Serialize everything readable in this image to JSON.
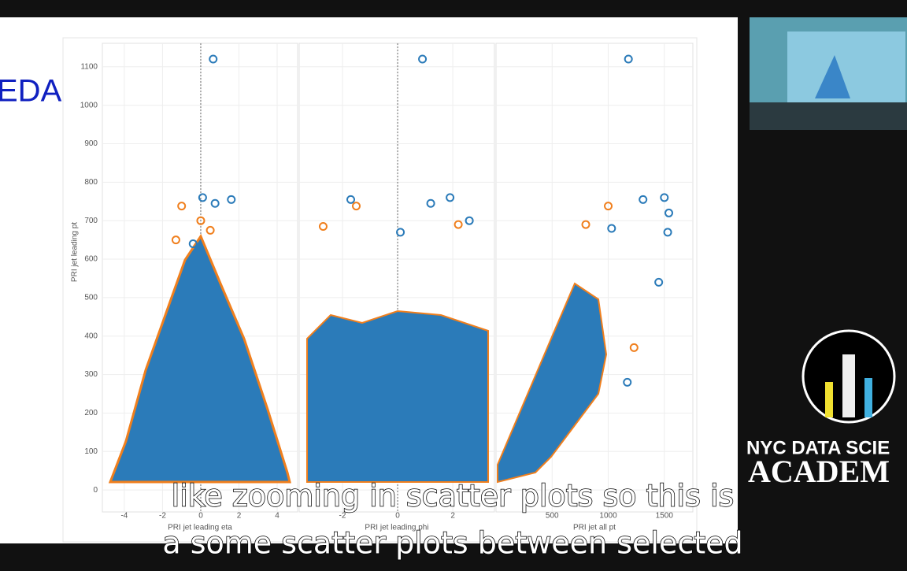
{
  "slide": {
    "title": "EDA",
    "y_label": "PRI jet leading pt"
  },
  "chart_data": [
    {
      "type": "scatter",
      "x_label": "PRI jet leading eta",
      "xlim": [
        -5.15,
        5.07
      ],
      "xticks": [
        -4,
        -2,
        0,
        2,
        4
      ],
      "ylim": [
        -57,
        1161
      ],
      "yticks": [
        0,
        100,
        200,
        300,
        400,
        500,
        600,
        700,
        800,
        900,
        1000,
        1100
      ],
      "grid": true,
      "series": [
        {
          "color": "#2b7bb9",
          "x": [
            0.65,
            0.1,
            0.75,
            1.6,
            -0.4
          ],
          "values": [
            1120,
            760,
            745,
            755,
            640
          ]
        },
        {
          "color": "#f07f1d",
          "x": [
            -1.0,
            0.0,
            0.5,
            -1.3
          ],
          "values": [
            738,
            700,
            675,
            650
          ]
        }
      ]
    },
    {
      "type": "scatter",
      "x_label": "PRI jet leading phi",
      "xlim": [
        -3.57,
        3.51
      ],
      "xticks": [
        -2,
        0,
        2
      ],
      "ylim": [
        -57,
        1161
      ],
      "series": [
        {
          "color": "#2b7bb9",
          "x": [
            0.9,
            -1.7,
            1.9,
            1.2,
            2.6,
            0.1
          ],
          "values": [
            1120,
            755,
            760,
            745,
            700,
            670
          ]
        },
        {
          "color": "#f07f1d",
          "x": [
            -1.5,
            -2.7,
            2.2
          ],
          "values": [
            738,
            685,
            690
          ]
        }
      ]
    },
    {
      "type": "scatter",
      "x_label": "PRI jet all pt",
      "xlim": [
        0,
        1754
      ],
      "xticks": [
        500,
        1000,
        1500
      ],
      "ylim": [
        -57,
        1161
      ],
      "series": [
        {
          "color": "#2b7bb9",
          "x": [
            1180,
            1500,
            1540,
            1310,
            1530,
            1450,
            1170,
            1030
          ],
          "values": [
            1120,
            760,
            720,
            755,
            670,
            540,
            280,
            680
          ]
        },
        {
          "color": "#f07f1d",
          "x": [
            1000,
            1230,
            800
          ],
          "values": [
            738,
            370,
            690
          ]
        }
      ]
    }
  ],
  "branding": {
    "line1": "NYC DATA SCIE",
    "line2": "ACADEM"
  },
  "captions": [
    "like zooming in scatter plots so this is",
    "a some scatter plots between selected"
  ]
}
